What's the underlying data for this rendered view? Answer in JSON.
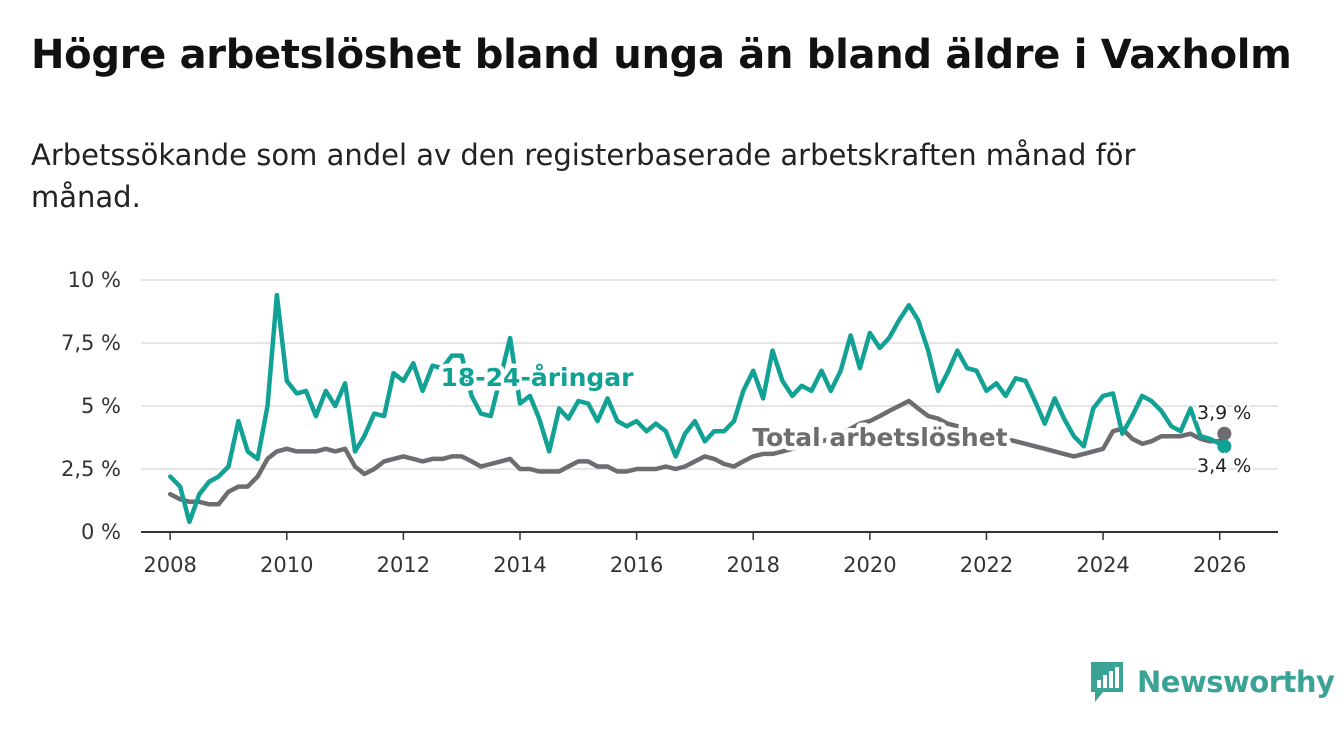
{
  "header": {
    "title": "Högre arbetslöshet bland unga än bland äldre i Vaxholm",
    "subtitle": "Arbetssökande som andel av den registerbaserade arbetskraften månad för månad."
  },
  "brand": {
    "name": "Newsworthy",
    "color": "#3aa396"
  },
  "chart_data": {
    "type": "line",
    "title": "Högre arbetslöshet bland unga än bland äldre i Vaxholm",
    "subtitle": "Arbetssökande som andel av den registerbaserade arbetskraften månad för månad.",
    "xlabel": "",
    "ylabel": "",
    "xlim": [
      2007.5,
      2027.0
    ],
    "ylim": [
      0,
      10
    ],
    "x_ticks": [
      2008,
      2010,
      2012,
      2014,
      2016,
      2018,
      2020,
      2022,
      2024,
      2026
    ],
    "x_tick_labels": [
      "2008",
      "2010",
      "2012",
      "2014",
      "2016",
      "2018",
      "2020",
      "2022",
      "2024",
      "2026"
    ],
    "y_ticks": [
      0,
      2.5,
      5,
      7.5,
      10
    ],
    "y_tick_labels": [
      "0 %",
      "2,5 %",
      "5 %",
      "7,5 %",
      "10 %"
    ],
    "grid": true,
    "series": [
      {
        "name": "18-24-åringar",
        "label": "18-24-åringar",
        "color": "#12a195",
        "end_label": "3,4 %",
        "x": [
          2008.0,
          2008.17,
          2008.33,
          2008.5,
          2008.67,
          2008.83,
          2009.0,
          2009.17,
          2009.33,
          2009.5,
          2009.67,
          2009.83,
          2010.0,
          2010.17,
          2010.33,
          2010.5,
          2010.67,
          2010.83,
          2011.0,
          2011.17,
          2011.33,
          2011.5,
          2011.67,
          2011.83,
          2012.0,
          2012.17,
          2012.33,
          2012.5,
          2012.67,
          2012.83,
          2013.0,
          2013.17,
          2013.33,
          2013.5,
          2013.67,
          2013.83,
          2014.0,
          2014.17,
          2014.33,
          2014.5,
          2014.67,
          2014.83,
          2015.0,
          2015.17,
          2015.33,
          2015.5,
          2015.67,
          2015.83,
          2016.0,
          2016.17,
          2016.33,
          2016.5,
          2016.67,
          2016.83,
          2017.0,
          2017.17,
          2017.33,
          2017.5,
          2017.67,
          2017.83,
          2018.0,
          2018.17,
          2018.33,
          2018.5,
          2018.67,
          2018.83,
          2019.0,
          2019.17,
          2019.33,
          2019.5,
          2019.67,
          2019.83,
          2020.0,
          2020.17,
          2020.33,
          2020.5,
          2020.67,
          2020.83,
          2021.0,
          2021.17,
          2021.33,
          2021.5,
          2021.67,
          2021.83,
          2022.0,
          2022.17,
          2022.33,
          2022.5,
          2022.67,
          2022.83,
          2023.0,
          2023.17,
          2023.33,
          2023.5,
          2023.67,
          2023.83,
          2024.0,
          2024.17,
          2024.33,
          2024.5,
          2024.67,
          2024.83,
          2025.0,
          2025.17,
          2025.33,
          2025.5,
          2025.67,
          2025.83,
          2026.0,
          2026.08
        ],
        "y": [
          2.2,
          1.8,
          0.4,
          1.5,
          2.0,
          2.2,
          2.6,
          4.4,
          3.2,
          2.9,
          5.0,
          9.4,
          6.0,
          5.5,
          5.6,
          4.6,
          5.6,
          5.0,
          5.9,
          3.2,
          3.8,
          4.7,
          4.6,
          6.3,
          6.0,
          6.7,
          5.6,
          6.6,
          6.5,
          7.0,
          7.0,
          5.4,
          4.7,
          4.6,
          6.2,
          7.7,
          5.1,
          5.4,
          4.5,
          3.2,
          4.9,
          4.5,
          5.2,
          5.1,
          4.4,
          5.3,
          4.4,
          4.2,
          4.4,
          4.0,
          4.3,
          4.0,
          3.0,
          3.9,
          4.4,
          3.6,
          4.0,
          4.0,
          4.4,
          5.6,
          6.4,
          5.3,
          7.2,
          6.0,
          5.4,
          5.8,
          5.6,
          6.4,
          5.6,
          6.4,
          7.8,
          6.5,
          7.9,
          7.3,
          7.7,
          8.4,
          9.0,
          8.4,
          7.2,
          5.6,
          6.3,
          7.2,
          6.5,
          6.4,
          5.6,
          5.9,
          5.4,
          6.1,
          6.0,
          5.2,
          4.3,
          5.3,
          4.5,
          3.8,
          3.4,
          4.9,
          5.4,
          5.5,
          3.9,
          4.6,
          5.4,
          5.2,
          4.8,
          4.2,
          4.0,
          4.9,
          3.8,
          3.7,
          3.5,
          3.4
        ]
      },
      {
        "name": "Total arbetslöshet",
        "label": "Total arbetslöshet",
        "color": "#6d6c70",
        "end_label": "3,9 %",
        "x": [
          2008.0,
          2008.17,
          2008.33,
          2008.5,
          2008.67,
          2008.83,
          2009.0,
          2009.17,
          2009.33,
          2009.5,
          2009.67,
          2009.83,
          2010.0,
          2010.17,
          2010.33,
          2010.5,
          2010.67,
          2010.83,
          2011.0,
          2011.17,
          2011.33,
          2011.5,
          2011.67,
          2011.83,
          2012.0,
          2012.17,
          2012.33,
          2012.5,
          2012.67,
          2012.83,
          2013.0,
          2013.17,
          2013.33,
          2013.5,
          2013.67,
          2013.83,
          2014.0,
          2014.17,
          2014.33,
          2014.5,
          2014.67,
          2014.83,
          2015.0,
          2015.17,
          2015.33,
          2015.5,
          2015.67,
          2015.83,
          2016.0,
          2016.17,
          2016.33,
          2016.5,
          2016.67,
          2016.83,
          2017.0,
          2017.17,
          2017.33,
          2017.5,
          2017.67,
          2017.83,
          2018.0,
          2018.17,
          2018.33,
          2018.5,
          2018.67,
          2018.83,
          2019.0,
          2019.17,
          2019.33,
          2019.5,
          2019.67,
          2019.83,
          2020.0,
          2020.17,
          2020.33,
          2020.5,
          2020.67,
          2020.83,
          2021.0,
          2021.17,
          2021.33,
          2021.5,
          2021.67,
          2021.83,
          2022.0,
          2022.17,
          2022.33,
          2022.5,
          2022.67,
          2022.83,
          2023.0,
          2023.17,
          2023.33,
          2023.5,
          2023.67,
          2023.83,
          2024.0,
          2024.17,
          2024.33,
          2024.5,
          2024.67,
          2024.83,
          2025.0,
          2025.17,
          2025.33,
          2025.5,
          2025.67,
          2025.83,
          2026.0,
          2026.08
        ],
        "y": [
          1.5,
          1.3,
          1.2,
          1.2,
          1.1,
          1.1,
          1.6,
          1.8,
          1.8,
          2.2,
          2.9,
          3.2,
          3.3,
          3.2,
          3.2,
          3.2,
          3.3,
          3.2,
          3.3,
          2.6,
          2.3,
          2.5,
          2.8,
          2.9,
          3.0,
          2.9,
          2.8,
          2.9,
          2.9,
          3.0,
          3.0,
          2.8,
          2.6,
          2.7,
          2.8,
          2.9,
          2.5,
          2.5,
          2.4,
          2.4,
          2.4,
          2.6,
          2.8,
          2.8,
          2.6,
          2.6,
          2.4,
          2.4,
          2.5,
          2.5,
          2.5,
          2.6,
          2.5,
          2.6,
          2.8,
          3.0,
          2.9,
          2.7,
          2.6,
          2.8,
          3.0,
          3.1,
          3.1,
          3.2,
          3.3,
          3.4,
          3.5,
          3.6,
          3.7,
          3.9,
          4.1,
          4.3,
          4.4,
          4.6,
          4.8,
          5.0,
          5.2,
          4.9,
          4.6,
          4.5,
          4.3,
          4.2,
          4.0,
          3.9,
          3.8,
          3.7,
          3.7,
          3.6,
          3.5,
          3.4,
          3.3,
          3.2,
          3.1,
          3.0,
          3.1,
          3.2,
          3.3,
          4.0,
          4.1,
          3.7,
          3.5,
          3.6,
          3.8,
          3.8,
          3.8,
          3.9,
          3.7,
          3.6,
          3.6,
          3.9
        ]
      }
    ]
  }
}
